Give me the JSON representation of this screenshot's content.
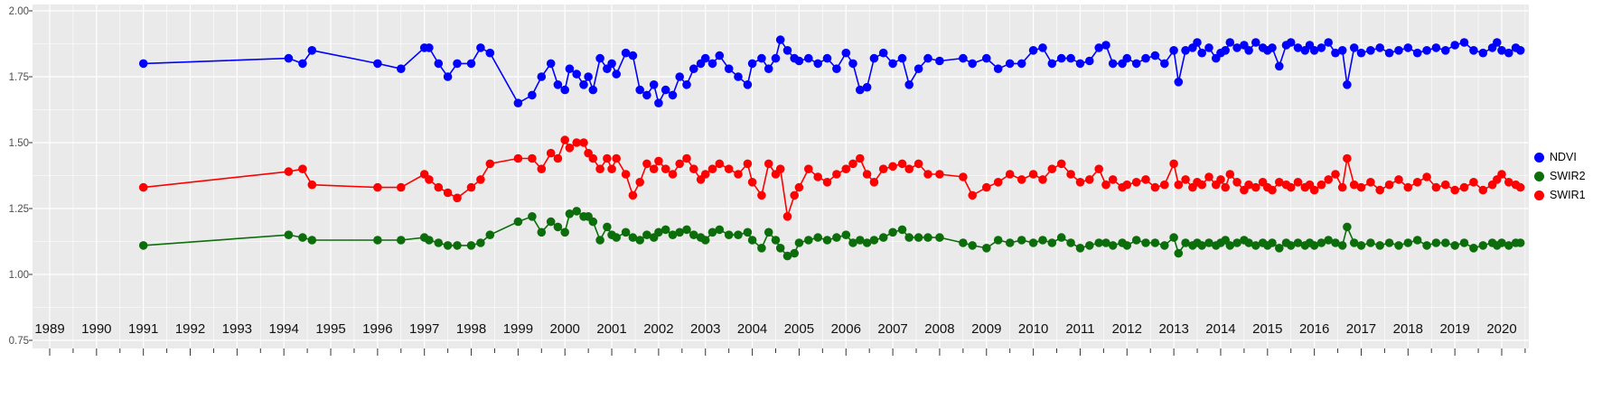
{
  "chart_data": {
    "type": "line",
    "title": "",
    "xlabel": "",
    "ylabel": "",
    "xlim": [
      1988.63,
      2020.58
    ],
    "ylim": [
      0.75,
      2.0
    ],
    "grid": true,
    "panel_background": "#EAEAEA",
    "gridline_color": "#FFFFFF",
    "axis_text_color_y": "#4D4D4D",
    "axis_text_color_x": "#111111",
    "x_ticks": [
      "1989",
      "1990",
      "1991",
      "1992",
      "1993",
      "1994",
      "1995",
      "1996",
      "1997",
      "1998",
      "1999",
      "2000",
      "2001",
      "2002",
      "2003",
      "2004",
      "2005",
      "2006",
      "2007",
      "2008",
      "2009",
      "2010",
      "2011",
      "2012",
      "2013",
      "2014",
      "2015",
      "2016",
      "2017",
      "2018",
      "2019",
      "2020"
    ],
    "x_tick_values": [
      1989,
      1990,
      1991,
      1992,
      1993,
      1994,
      1995,
      1996,
      1997,
      1998,
      1999,
      2000,
      2001,
      2002,
      2003,
      2004,
      2005,
      2006,
      2007,
      2008,
      2009,
      2010,
      2011,
      2012,
      2013,
      2014,
      2015,
      2016,
      2017,
      2018,
      2019,
      2020
    ],
    "y_ticks": [
      "2.00",
      "1.75",
      "1.50",
      "1.25",
      "1.00",
      "0.75"
    ],
    "y_tick_values": [
      2.0,
      1.75,
      1.5,
      1.25,
      1.0,
      0.75
    ],
    "x": [
      1991.0,
      1994.1,
      1994.4,
      1994.6,
      1996.0,
      1996.5,
      1997.0,
      1997.1,
      1997.3,
      1997.5,
      1997.7,
      1998.0,
      1998.2,
      1998.4,
      1999.0,
      1999.3,
      1999.5,
      1999.7,
      1999.85,
      2000.0,
      2000.1,
      2000.25,
      2000.4,
      2000.5,
      2000.6,
      2000.75,
      2000.9,
      2001.0,
      2001.1,
      2001.3,
      2001.45,
      2001.6,
      2001.75,
      2001.9,
      2002.0,
      2002.15,
      2002.3,
      2002.45,
      2002.6,
      2002.75,
      2002.9,
      2003.0,
      2003.15,
      2003.3,
      2003.5,
      2003.7,
      2003.9,
      2004.0,
      2004.2,
      2004.35,
      2004.5,
      2004.6,
      2004.75,
      2004.9,
      2005.0,
      2005.2,
      2005.4,
      2005.6,
      2005.8,
      2006.0,
      2006.15,
      2006.3,
      2006.45,
      2006.6,
      2006.8,
      2007.0,
      2007.2,
      2007.35,
      2007.55,
      2007.75,
      2008.0,
      2008.5,
      2008.7,
      2009.0,
      2009.25,
      2009.5,
      2009.75,
      2010.0,
      2010.2,
      2010.4,
      2010.6,
      2010.8,
      2011.0,
      2011.2,
      2011.4,
      2011.55,
      2011.7,
      2011.9,
      2012.0,
      2012.2,
      2012.4,
      2012.6,
      2012.8,
      2013.0,
      2013.1,
      2013.25,
      2013.4,
      2013.5,
      2013.6,
      2013.75,
      2013.9,
      2014.0,
      2014.1,
      2014.2,
      2014.35,
      2014.5,
      2014.6,
      2014.75,
      2014.9,
      2015.0,
      2015.1,
      2015.25,
      2015.4,
      2015.5,
      2015.65,
      2015.8,
      2015.9,
      2016.0,
      2016.15,
      2016.3,
      2016.45,
      2016.6,
      2016.7,
      2016.85,
      2017.0,
      2017.2,
      2017.4,
      2017.6,
      2017.8,
      2018.0,
      2018.2,
      2018.4,
      2018.6,
      2018.8,
      2019.0,
      2019.2,
      2019.4,
      2019.6,
      2019.8,
      2019.9,
      2020.0,
      2020.15,
      2020.3,
      2020.4
    ],
    "series": [
      {
        "name": "NDVI",
        "color": "#0000FF",
        "values": [
          1.8,
          1.82,
          1.8,
          1.85,
          1.8,
          1.78,
          1.86,
          1.86,
          1.8,
          1.75,
          1.8,
          1.8,
          1.86,
          1.84,
          1.65,
          1.68,
          1.75,
          1.8,
          1.72,
          1.7,
          1.78,
          1.76,
          1.72,
          1.75,
          1.7,
          1.82,
          1.78,
          1.8,
          1.76,
          1.84,
          1.83,
          1.7,
          1.68,
          1.72,
          1.65,
          1.7,
          1.68,
          1.75,
          1.72,
          1.78,
          1.8,
          1.82,
          1.8,
          1.83,
          1.78,
          1.75,
          1.72,
          1.8,
          1.82,
          1.78,
          1.82,
          1.89,
          1.85,
          1.82,
          1.81,
          1.82,
          1.8,
          1.82,
          1.78,
          1.84,
          1.8,
          1.7,
          1.71,
          1.82,
          1.84,
          1.8,
          1.82,
          1.72,
          1.78,
          1.82,
          1.81,
          1.82,
          1.8,
          1.82,
          1.78,
          1.8,
          1.8,
          1.85,
          1.86,
          1.8,
          1.82,
          1.82,
          1.8,
          1.81,
          1.86,
          1.87,
          1.8,
          1.8,
          1.82,
          1.8,
          1.82,
          1.83,
          1.8,
          1.85,
          1.73,
          1.85,
          1.86,
          1.88,
          1.84,
          1.86,
          1.82,
          1.84,
          1.85,
          1.88,
          1.86,
          1.87,
          1.85,
          1.88,
          1.86,
          1.85,
          1.86,
          1.79,
          1.87,
          1.88,
          1.86,
          1.85,
          1.87,
          1.85,
          1.86,
          1.88,
          1.84,
          1.85,
          1.72,
          1.86,
          1.84,
          1.85,
          1.86,
          1.84,
          1.85,
          1.86,
          1.84,
          1.85,
          1.86,
          1.85,
          1.87,
          1.88,
          1.85,
          1.84,
          1.86,
          1.88,
          1.85,
          1.84,
          1.86,
          1.85
        ]
      },
      {
        "name": "SWIR2",
        "color": "#0B6E0B",
        "values": [
          1.11,
          1.15,
          1.14,
          1.13,
          1.13,
          1.13,
          1.14,
          1.13,
          1.12,
          1.11,
          1.11,
          1.11,
          1.12,
          1.15,
          1.2,
          1.22,
          1.16,
          1.2,
          1.18,
          1.16,
          1.23,
          1.24,
          1.22,
          1.22,
          1.2,
          1.13,
          1.18,
          1.15,
          1.14,
          1.16,
          1.14,
          1.13,
          1.15,
          1.14,
          1.16,
          1.17,
          1.15,
          1.16,
          1.17,
          1.15,
          1.14,
          1.13,
          1.16,
          1.17,
          1.15,
          1.15,
          1.16,
          1.13,
          1.1,
          1.16,
          1.13,
          1.1,
          1.07,
          1.08,
          1.12,
          1.13,
          1.14,
          1.13,
          1.14,
          1.15,
          1.12,
          1.13,
          1.12,
          1.13,
          1.14,
          1.16,
          1.17,
          1.14,
          1.14,
          1.14,
          1.14,
          1.12,
          1.11,
          1.1,
          1.13,
          1.12,
          1.13,
          1.12,
          1.13,
          1.12,
          1.14,
          1.12,
          1.1,
          1.11,
          1.12,
          1.12,
          1.11,
          1.12,
          1.11,
          1.13,
          1.12,
          1.12,
          1.11,
          1.14,
          1.08,
          1.12,
          1.11,
          1.12,
          1.11,
          1.12,
          1.11,
          1.12,
          1.13,
          1.11,
          1.12,
          1.13,
          1.12,
          1.11,
          1.12,
          1.11,
          1.12,
          1.1,
          1.12,
          1.11,
          1.12,
          1.11,
          1.12,
          1.11,
          1.12,
          1.13,
          1.12,
          1.11,
          1.18,
          1.12,
          1.11,
          1.12,
          1.11,
          1.12,
          1.11,
          1.12,
          1.13,
          1.11,
          1.12,
          1.12,
          1.11,
          1.12,
          1.1,
          1.11,
          1.12,
          1.11,
          1.12,
          1.11,
          1.12,
          1.12
        ]
      },
      {
        "name": "SWIR1",
        "color": "#FF0000",
        "values": [
          1.33,
          1.39,
          1.4,
          1.34,
          1.33,
          1.33,
          1.38,
          1.36,
          1.33,
          1.31,
          1.29,
          1.33,
          1.36,
          1.42,
          1.44,
          1.44,
          1.4,
          1.46,
          1.44,
          1.51,
          1.48,
          1.5,
          1.5,
          1.46,
          1.44,
          1.4,
          1.44,
          1.4,
          1.44,
          1.38,
          1.3,
          1.35,
          1.42,
          1.4,
          1.43,
          1.4,
          1.38,
          1.42,
          1.44,
          1.4,
          1.36,
          1.38,
          1.4,
          1.42,
          1.4,
          1.38,
          1.42,
          1.35,
          1.3,
          1.42,
          1.38,
          1.4,
          1.22,
          1.3,
          1.33,
          1.4,
          1.37,
          1.35,
          1.38,
          1.4,
          1.42,
          1.44,
          1.38,
          1.35,
          1.4,
          1.41,
          1.42,
          1.4,
          1.42,
          1.38,
          1.38,
          1.37,
          1.3,
          1.33,
          1.35,
          1.38,
          1.36,
          1.38,
          1.36,
          1.4,
          1.42,
          1.38,
          1.35,
          1.36,
          1.4,
          1.34,
          1.36,
          1.33,
          1.34,
          1.35,
          1.36,
          1.33,
          1.34,
          1.42,
          1.34,
          1.36,
          1.33,
          1.35,
          1.34,
          1.37,
          1.34,
          1.36,
          1.33,
          1.38,
          1.35,
          1.32,
          1.34,
          1.33,
          1.35,
          1.33,
          1.32,
          1.35,
          1.34,
          1.33,
          1.35,
          1.33,
          1.34,
          1.32,
          1.34,
          1.36,
          1.38,
          1.33,
          1.44,
          1.34,
          1.33,
          1.35,
          1.32,
          1.34,
          1.36,
          1.33,
          1.35,
          1.37,
          1.33,
          1.34,
          1.32,
          1.33,
          1.35,
          1.32,
          1.34,
          1.36,
          1.38,
          1.35,
          1.34,
          1.33
        ]
      }
    ],
    "legend": {
      "position": "right",
      "entries": [
        {
          "label": "NDVI",
          "color": "#0000FF"
        },
        {
          "label": "SWIR2",
          "color": "#0B6E0B"
        },
        {
          "label": "SWIR1",
          "color": "#FF0000"
        }
      ]
    }
  }
}
